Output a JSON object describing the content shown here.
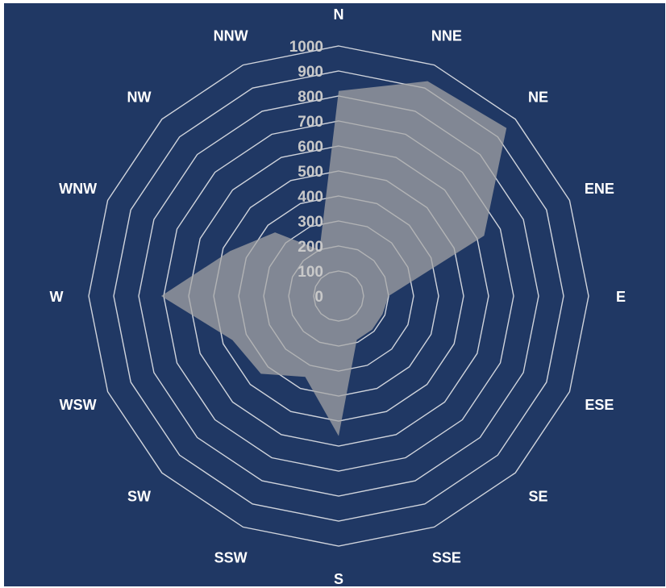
{
  "chart_data": {
    "type": "radar",
    "categories": [
      "N",
      "NNE",
      "NE",
      "ENE",
      "E",
      "ESE",
      "SE",
      "SSE",
      "S",
      "SSW",
      "SW",
      "WSW",
      "W",
      "WNW",
      "NW",
      "NNW"
    ],
    "series": [
      {
        "values": [
          820,
          930,
          950,
          630,
          200,
          190,
          190,
          190,
          560,
          350,
          440,
          460,
          710,
          470,
          360,
          200
        ]
      }
    ],
    "ticks": [
      "0",
      "100",
      "200",
      "300",
      "400",
      "500",
      "600",
      "700",
      "800",
      "900",
      "1000"
    ],
    "rmin": 0,
    "rmax": 1000,
    "rings": "polygonal",
    "legend": "none",
    "colors": {
      "background": "#203864",
      "area": "#a6a6a6",
      "grid": "#d0d4dc",
      "tick_text": "#c9c9c9",
      "direction_text": "#ffffff"
    }
  }
}
